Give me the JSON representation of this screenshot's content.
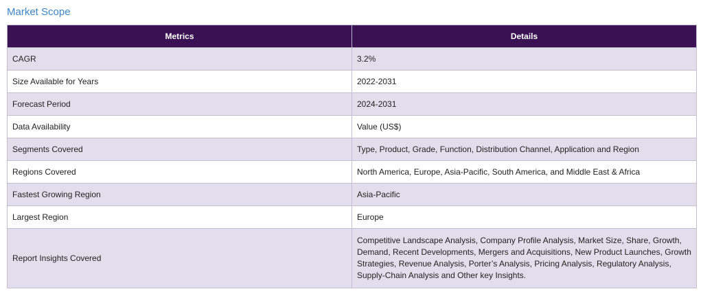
{
  "title": "Market Scope",
  "table": {
    "headers": [
      "Metrics",
      "Details"
    ],
    "rows": [
      {
        "metric": "CAGR",
        "detail": "3.2%"
      },
      {
        "metric": "Size Available for Years",
        "detail": "2022-2031"
      },
      {
        "metric": "Forecast Period",
        "detail": "2024-2031"
      },
      {
        "metric": "Data Availability",
        "detail": "Value (US$)"
      },
      {
        "metric": "Segments Covered",
        "detail": "Type, Product, Grade, Function, Distribution Channel, Application and Region"
      },
      {
        "metric": "Regions Covered",
        "detail": "North America, Europe, Asia-Pacific, South America, and Middle East & Africa"
      },
      {
        "metric": "Fastest Growing Region",
        "detail": "Asia-Pacific"
      },
      {
        "metric": "Largest Region",
        "detail": "Europe"
      },
      {
        "metric": "Report Insights Covered",
        "detail": "Competitive Landscape Analysis, Company Profile Analysis, Market Size, Share, Growth, Demand, Recent Developments, Mergers and Acquisitions, New Product Launches, Growth Strategies, Revenue Analysis, Porter’s Analysis, Pricing Analysis, Regulatory Analysis, Supply-Chain Analysis and Other key Insights."
      }
    ]
  }
}
